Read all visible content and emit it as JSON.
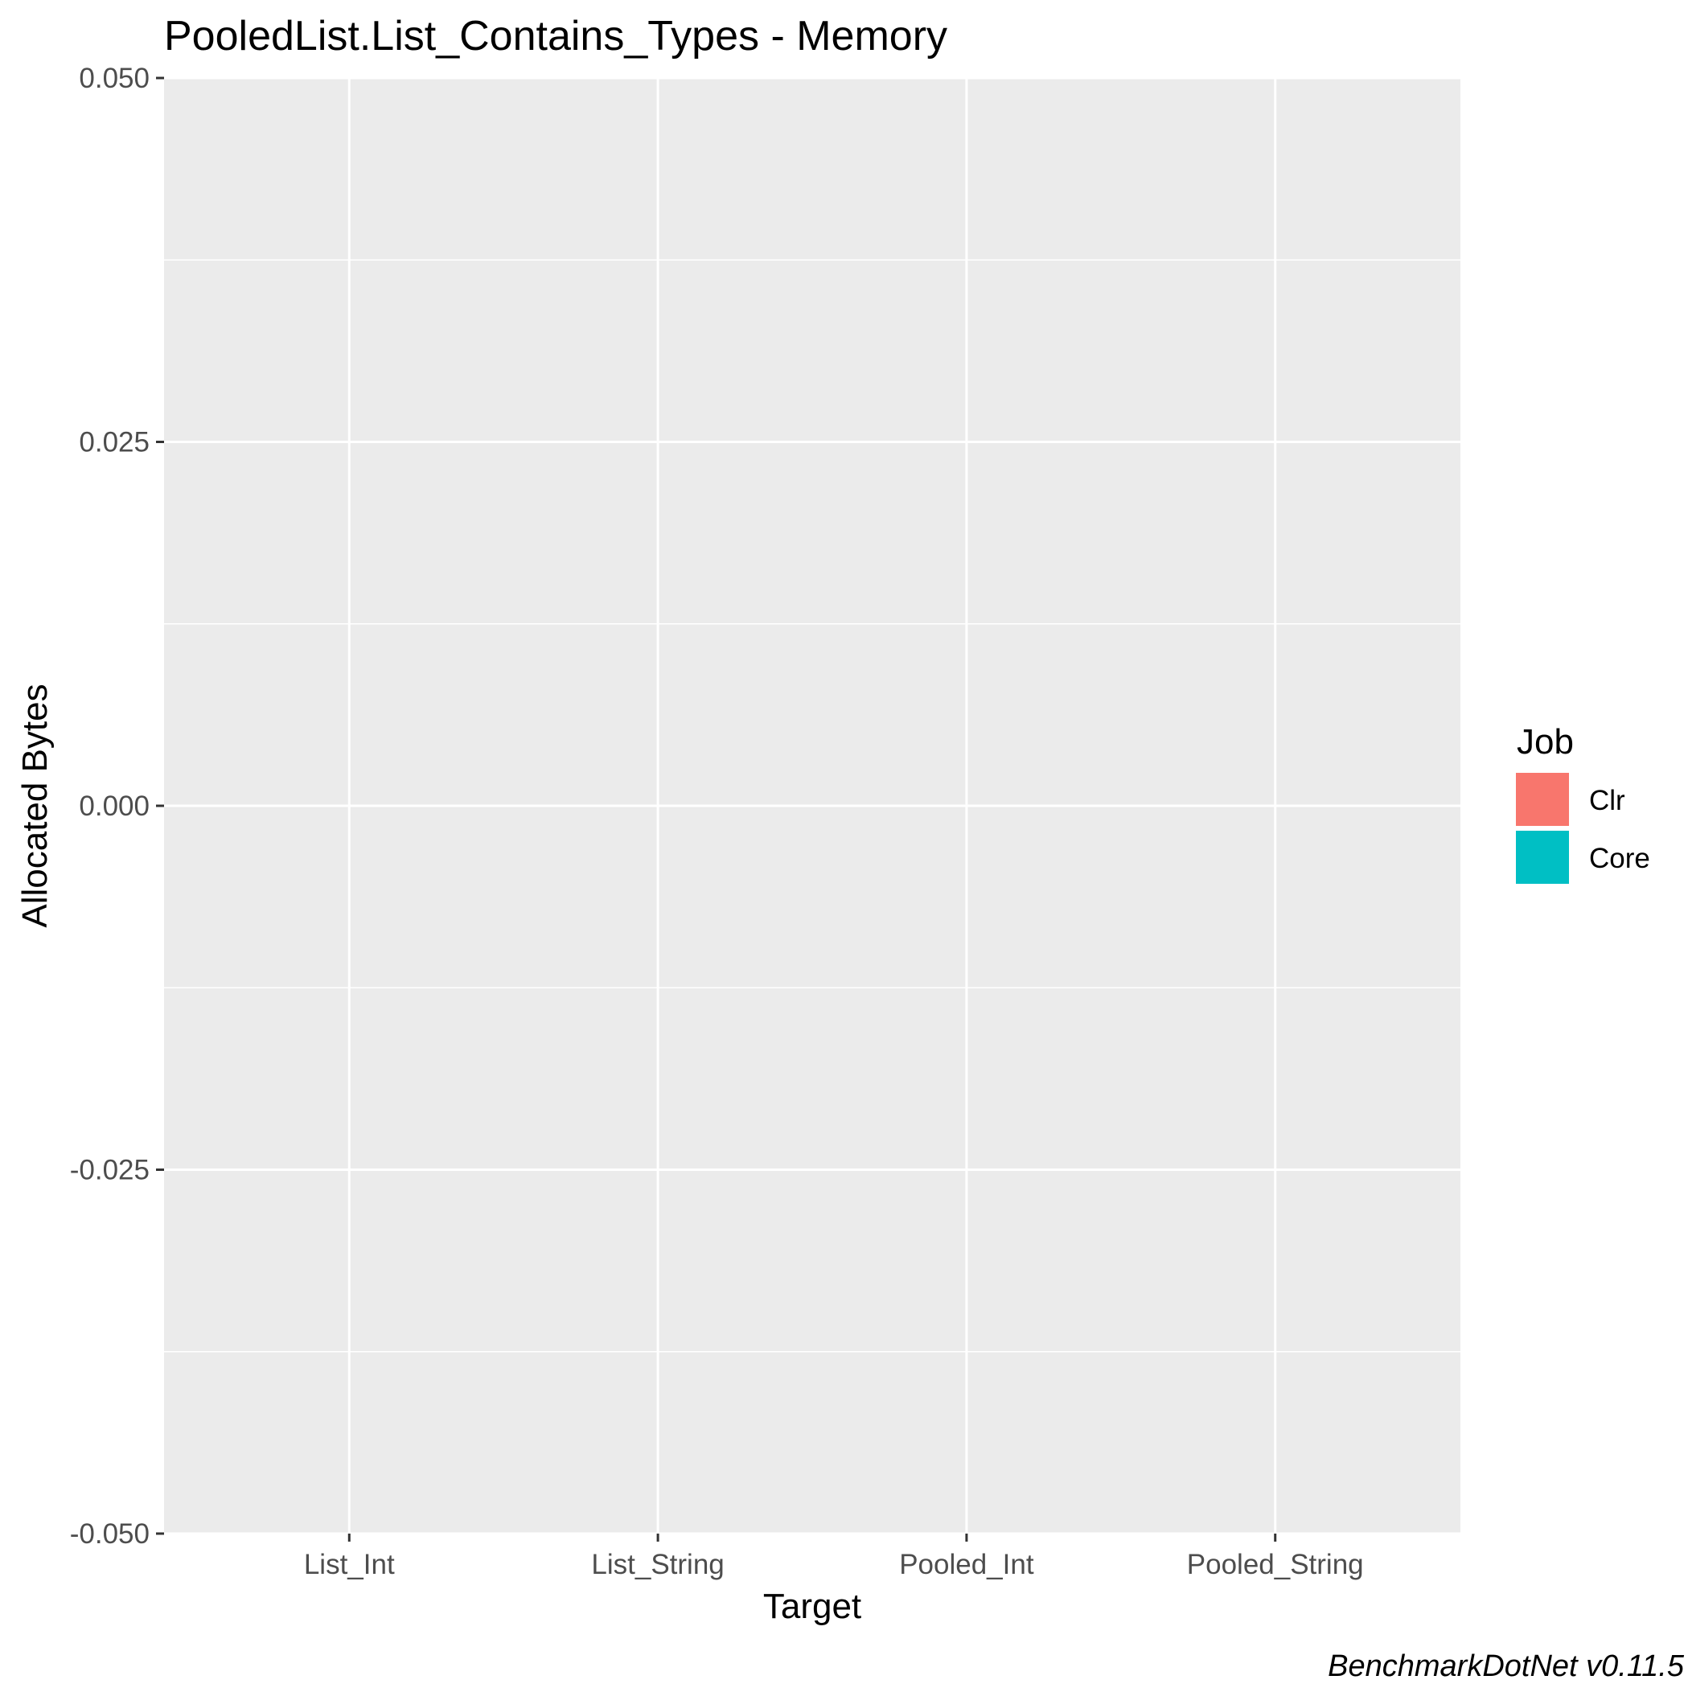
{
  "chart_data": {
    "type": "bar",
    "title": "PooledList.List_Contains_Types - Memory",
    "xlabel": "Target",
    "ylabel": "Allocated  Bytes",
    "categories": [
      "List_Int",
      "List_String",
      "Pooled_Int",
      "Pooled_String"
    ],
    "y_ticks": [
      "0.050",
      "0.025",
      "0.000",
      "-0.025",
      "-0.050"
    ],
    "ylim": [
      -0.05,
      0.05
    ],
    "grid": true,
    "series": [
      {
        "name": "Clr",
        "color": "#F8766D",
        "values": [
          0,
          0,
          0,
          0
        ]
      },
      {
        "name": "Core",
        "color": "#00BFC4",
        "values": [
          0,
          0,
          0,
          0
        ]
      }
    ],
    "legend": {
      "title": "Job",
      "position": "right"
    },
    "caption": "BenchmarkDotNet v0.11.5"
  }
}
